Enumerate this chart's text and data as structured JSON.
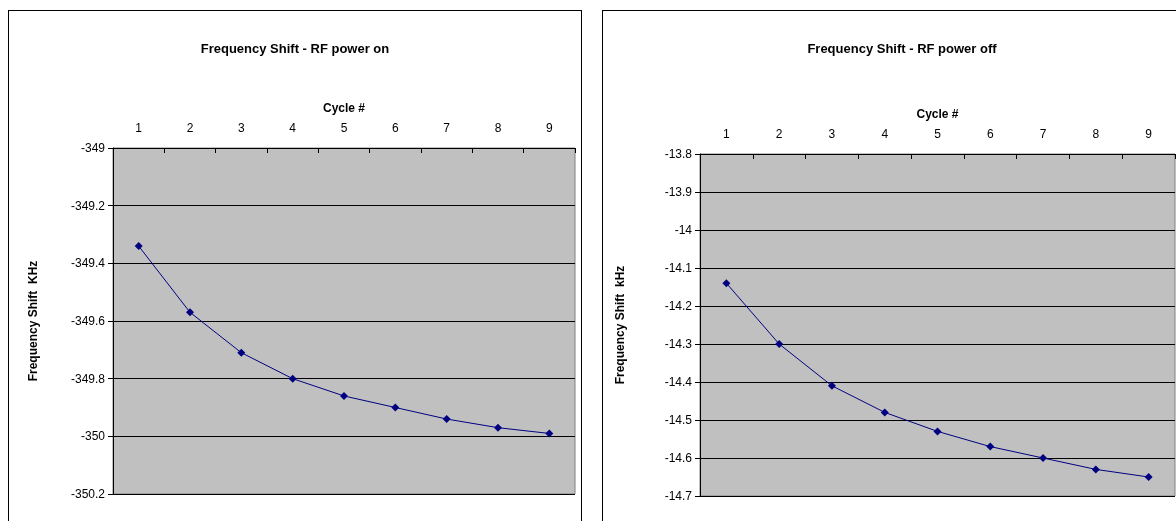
{
  "chart_data": [
    {
      "type": "line",
      "title": "Frequency Shift - RF power on",
      "xlabel": "Cycle #",
      "ylabel": "Frequency Shift  KHz",
      "categories": [
        "1",
        "2",
        "3",
        "4",
        "5",
        "6",
        "7",
        "8",
        "9"
      ],
      "series": [
        {
          "color": "#000080",
          "values": [
            -349.34,
            -349.57,
            -349.71,
            -349.8,
            -349.86,
            -349.9,
            -349.94,
            -349.97,
            -349.99
          ]
        }
      ],
      "ylim": [
        -350.2,
        -349
      ],
      "yticks": [
        -350.2,
        -350,
        -349.8,
        -349.6,
        -349.4,
        -349.2,
        -349
      ],
      "grid": "y",
      "marker": "diamond"
    },
    {
      "type": "line",
      "title": "Frequency Shift - RF power off",
      "xlabel": "Cycle #",
      "ylabel": "Frequency Shift  kHz",
      "categories": [
        "1",
        "2",
        "3",
        "4",
        "5",
        "6",
        "7",
        "8",
        "9"
      ],
      "series": [
        {
          "color": "#000080",
          "values": [
            -14.14,
            -14.3,
            -14.41,
            -14.48,
            -14.53,
            -14.57,
            -14.6,
            -14.63,
            -14.65
          ]
        }
      ],
      "ylim": [
        -14.7,
        -13.8
      ],
      "yticks": [
        -14.7,
        -14.6,
        -14.5,
        -14.4,
        -14.3,
        -14.2,
        -14.1,
        -14,
        -13.9,
        -13.8
      ],
      "grid": "y",
      "marker": "diamond"
    }
  ]
}
